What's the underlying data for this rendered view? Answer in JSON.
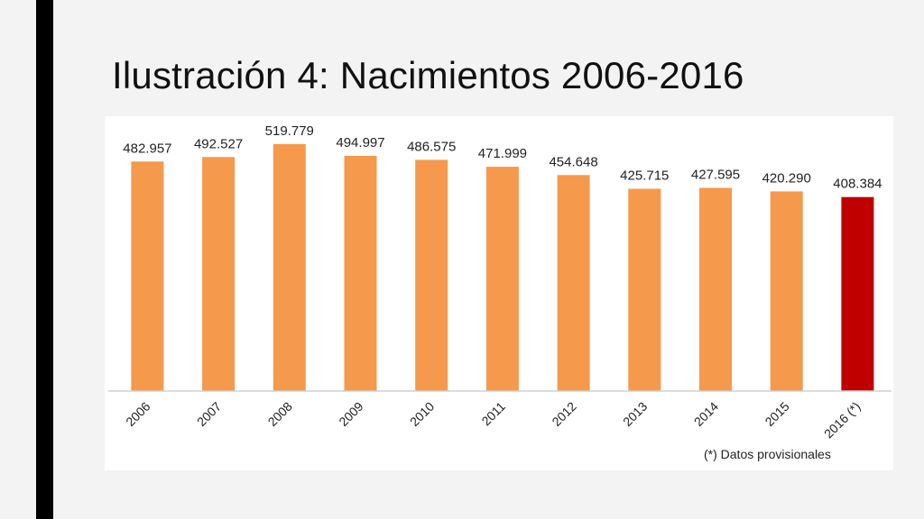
{
  "slide": {
    "title": "Ilustración 4: Nacimientos 2006-2016"
  },
  "chart_data": {
    "type": "bar",
    "categories": [
      "2006",
      "2007",
      "2008",
      "2009",
      "2010",
      "2011",
      "2012",
      "2013",
      "2014",
      "2015",
      "2016 (*)"
    ],
    "values": [
      482957,
      492527,
      519779,
      494997,
      486575,
      471999,
      454648,
      425715,
      427595,
      420290,
      408384
    ],
    "data_labels": [
      "482.957",
      "492.527",
      "519.779",
      "494.997",
      "486.575",
      "471.999",
      "454.648",
      "425.715",
      "427.595",
      "420.290",
      "408.384"
    ],
    "title": "",
    "xlabel": "",
    "ylabel": "",
    "ylim": [
      0,
      550000
    ],
    "grid": false,
    "legend": "none",
    "footnote": "(*) Datos provisionales",
    "colors": {
      "default": "#f5994c",
      "highlight": "#c00000",
      "axis": "#d0d0d0"
    },
    "highlight_index": 10
  }
}
